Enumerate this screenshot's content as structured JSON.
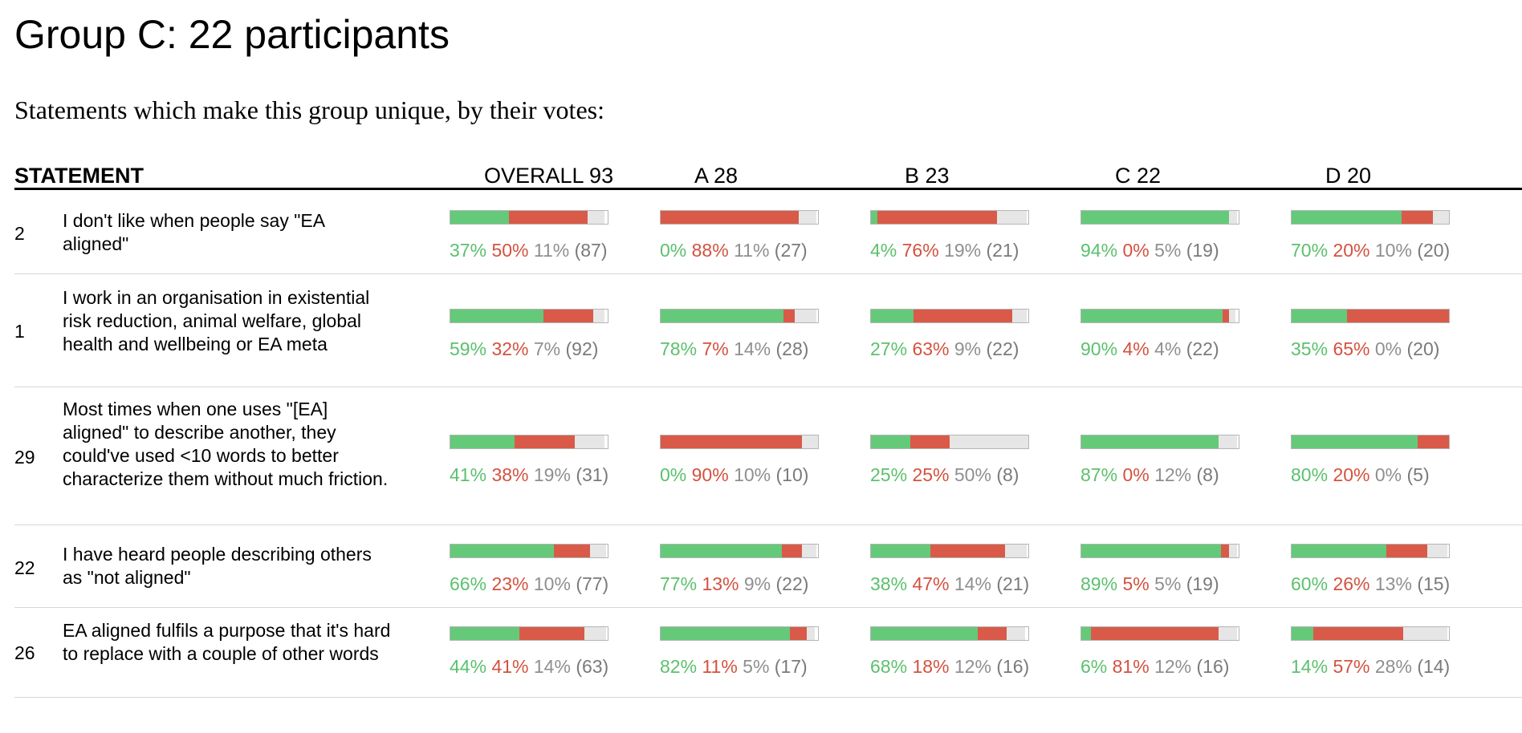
{
  "page": {
    "title": "Group C: 22 participants",
    "subtitle": "Statements which make this group unique, by their votes:"
  },
  "table": {
    "statement_header": "STATEMENT",
    "columns": [
      "OVERALL 93",
      "A 28",
      "B 23",
      "C 22",
      "D 20"
    ],
    "colors": {
      "agree": "#65c97a",
      "disagree": "#d95a48",
      "pass": "#e6e6e6"
    },
    "rows": [
      {
        "id": "2",
        "text": "I don't like when people say \"EA aligned\"",
        "cells": [
          {
            "agree": 37,
            "disagree": 50,
            "pass": 11,
            "count": 87,
            "agree_t": "37%",
            "disagree_t": "50%",
            "pass_t": "11%",
            "count_t": "(87)"
          },
          {
            "agree": 0,
            "disagree": 88,
            "pass": 11,
            "count": 27,
            "agree_t": "0%",
            "disagree_t": "88%",
            "pass_t": "11%",
            "count_t": "(27)"
          },
          {
            "agree": 4,
            "disagree": 76,
            "pass": 19,
            "count": 21,
            "agree_t": "4%",
            "disagree_t": "76%",
            "pass_t": "19%",
            "count_t": "(21)"
          },
          {
            "agree": 94,
            "disagree": 0,
            "pass": 5,
            "count": 19,
            "agree_t": "94%",
            "disagree_t": "0%",
            "pass_t": "5%",
            "count_t": "(19)"
          },
          {
            "agree": 70,
            "disagree": 20,
            "pass": 10,
            "count": 20,
            "agree_t": "70%",
            "disagree_t": "20%",
            "pass_t": "10%",
            "count_t": "(20)"
          }
        ]
      },
      {
        "id": "1",
        "text": "I work in an organisation in existential risk reduction, animal welfare, global health and wellbeing or EA meta",
        "cells": [
          {
            "agree": 59,
            "disagree": 32,
            "pass": 7,
            "count": 92,
            "agree_t": "59%",
            "disagree_t": "32%",
            "pass_t": "7%",
            "count_t": "(92)"
          },
          {
            "agree": 78,
            "disagree": 7,
            "pass": 14,
            "count": 28,
            "agree_t": "78%",
            "disagree_t": "7%",
            "pass_t": "14%",
            "count_t": "(28)"
          },
          {
            "agree": 27,
            "disagree": 63,
            "pass": 9,
            "count": 22,
            "agree_t": "27%",
            "disagree_t": "63%",
            "pass_t": "9%",
            "count_t": "(22)"
          },
          {
            "agree": 90,
            "disagree": 4,
            "pass": 4,
            "count": 22,
            "agree_t": "90%",
            "disagree_t": "4%",
            "pass_t": "4%",
            "count_t": "(22)"
          },
          {
            "agree": 35,
            "disagree": 65,
            "pass": 0,
            "count": 20,
            "agree_t": "35%",
            "disagree_t": "65%",
            "pass_t": "0%",
            "count_t": "(20)"
          }
        ]
      },
      {
        "id": "29",
        "text": "Most times when one uses \"[EA] aligned\" to describe another, they could've used <10 words to better characterize them without much friction.",
        "cells": [
          {
            "agree": 41,
            "disagree": 38,
            "pass": 19,
            "count": 31,
            "agree_t": "41%",
            "disagree_t": "38%",
            "pass_t": "19%",
            "count_t": "(31)"
          },
          {
            "agree": 0,
            "disagree": 90,
            "pass": 10,
            "count": 10,
            "agree_t": "0%",
            "disagree_t": "90%",
            "pass_t": "10%",
            "count_t": "(10)"
          },
          {
            "agree": 25,
            "disagree": 25,
            "pass": 50,
            "count": 8,
            "agree_t": "25%",
            "disagree_t": "25%",
            "pass_t": "50%",
            "count_t": "(8)"
          },
          {
            "agree": 87,
            "disagree": 0,
            "pass": 12,
            "count": 8,
            "agree_t": "87%",
            "disagree_t": "0%",
            "pass_t": "12%",
            "count_t": "(8)"
          },
          {
            "agree": 80,
            "disagree": 20,
            "pass": 0,
            "count": 5,
            "agree_t": "80%",
            "disagree_t": "20%",
            "pass_t": "0%",
            "count_t": "(5)"
          }
        ]
      },
      {
        "id": "22",
        "text": "I have heard people describing others as \"not aligned\"",
        "cells": [
          {
            "agree": 66,
            "disagree": 23,
            "pass": 10,
            "count": 77,
            "agree_t": "66%",
            "disagree_t": "23%",
            "pass_t": "10%",
            "count_t": "(77)"
          },
          {
            "agree": 77,
            "disagree": 13,
            "pass": 9,
            "count": 22,
            "agree_t": "77%",
            "disagree_t": "13%",
            "pass_t": "9%",
            "count_t": "(22)"
          },
          {
            "agree": 38,
            "disagree": 47,
            "pass": 14,
            "count": 21,
            "agree_t": "38%",
            "disagree_t": "47%",
            "pass_t": "14%",
            "count_t": "(21)"
          },
          {
            "agree": 89,
            "disagree": 5,
            "pass": 5,
            "count": 19,
            "agree_t": "89%",
            "disagree_t": "5%",
            "pass_t": "5%",
            "count_t": "(19)"
          },
          {
            "agree": 60,
            "disagree": 26,
            "pass": 13,
            "count": 15,
            "agree_t": "60%",
            "disagree_t": "26%",
            "pass_t": "13%",
            "count_t": "(15)"
          }
        ]
      },
      {
        "id": "26",
        "text": "EA aligned fulfils a purpose that it's hard to replace with a couple of other words",
        "cells": [
          {
            "agree": 44,
            "disagree": 41,
            "pass": 14,
            "count": 63,
            "agree_t": "44%",
            "disagree_t": "41%",
            "pass_t": "14%",
            "count_t": "(63)"
          },
          {
            "agree": 82,
            "disagree": 11,
            "pass": 5,
            "count": 17,
            "agree_t": "82%",
            "disagree_t": "11%",
            "pass_t": "5%",
            "count_t": "(17)"
          },
          {
            "agree": 68,
            "disagree": 18,
            "pass": 12,
            "count": 16,
            "agree_t": "68%",
            "disagree_t": "18%",
            "pass_t": "12%",
            "count_t": "(16)"
          },
          {
            "agree": 6,
            "disagree": 81,
            "pass": 12,
            "count": 16,
            "agree_t": "6%",
            "disagree_t": "81%",
            "pass_t": "12%",
            "count_t": "(16)"
          },
          {
            "agree": 14,
            "disagree": 57,
            "pass": 28,
            "count": 14,
            "agree_t": "14%",
            "disagree_t": "57%",
            "pass_t": "28%",
            "count_t": "(14)"
          }
        ]
      }
    ]
  }
}
